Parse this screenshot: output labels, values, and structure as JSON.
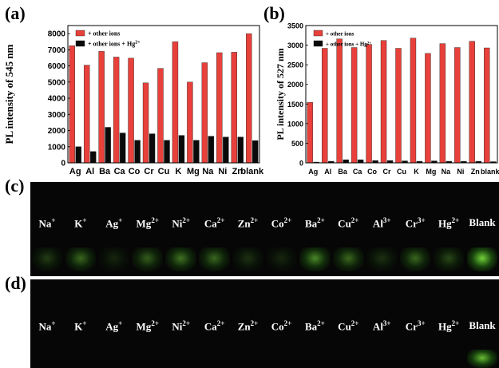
{
  "panels": {
    "a": "(a)",
    "b": "(b)",
    "c": "(c)",
    "d": "(d)"
  },
  "chart_data": [
    {
      "type": "bar",
      "ylabel": "PL intensity of 545 nm",
      "xlabel": "",
      "ylim": [
        0,
        8500
      ],
      "yticks": [
        0,
        1000,
        2000,
        3000,
        4000,
        5000,
        6000,
        7000,
        8000
      ],
      "categories": [
        "Ag",
        "Al",
        "Ba",
        "Ca",
        "Co",
        "Cr",
        "Cu",
        "K",
        "Mg",
        "Na",
        "Ni",
        "Zn",
        "blank"
      ],
      "series": [
        {
          "name": "+ other ions",
          "color": "#e8403a",
          "values": [
            7250,
            6050,
            6900,
            6550,
            6480,
            4950,
            5850,
            7500,
            5000,
            6200,
            6820,
            6850,
            8000
          ]
        },
        {
          "name": "+ other ions + Hg",
          "name_sup": "2+",
          "color": "#0a0a0a",
          "values": [
            1000,
            700,
            2200,
            1850,
            1400,
            1800,
            1400,
            1700,
            1400,
            1650,
            1600,
            1600,
            1380
          ]
        }
      ],
      "legend": "top-left",
      "grid": false
    },
    {
      "type": "bar",
      "ylabel": "PL intensity of 527 nm",
      "xlabel": "",
      "ylim": [
        0,
        3500
      ],
      "yticks": [
        0,
        500,
        1000,
        1500,
        2000,
        2500,
        3000,
        3500
      ],
      "categories": [
        "Ag",
        "Al",
        "Ba",
        "Ca",
        "Co",
        "Cr",
        "Cu",
        "K",
        "Mg",
        "Na",
        "Ni",
        "Zn",
        "blank"
      ],
      "series": [
        {
          "name": "+ other ions",
          "color": "#e8403a",
          "values": [
            1540,
            2920,
            3160,
            2940,
            3020,
            3120,
            2920,
            3180,
            2790,
            3040,
            2940,
            3100,
            2930
          ]
        },
        {
          "name": "+ other ions + Hg",
          "name_sup": "2+",
          "color": "#0a0a0a",
          "values": [
            20,
            40,
            80,
            80,
            60,
            60,
            50,
            40,
            50,
            40,
            40,
            40,
            30
          ]
        }
      ],
      "legend": "top-left",
      "grid": false
    }
  ],
  "ions": [
    {
      "base": "Na",
      "sup": "+"
    },
    {
      "base": "K",
      "sup": "+"
    },
    {
      "base": "Ag",
      "sup": "+"
    },
    {
      "base": "Mg",
      "sup": "2+"
    },
    {
      "base": "Ni",
      "sup": "2+"
    },
    {
      "base": "Ca",
      "sup": "2+"
    },
    {
      "base": "Zn",
      "sup": "2+"
    },
    {
      "base": "Co",
      "sup": "2+"
    },
    {
      "base": "Ba",
      "sup": "2+"
    },
    {
      "base": "Cu",
      "sup": "2+"
    },
    {
      "base": "Al",
      "sup": "3+"
    },
    {
      "base": "Cr",
      "sup": "3+"
    },
    {
      "base": "Hg",
      "sup": "2+"
    },
    {
      "base": "Blank",
      "sup": ""
    }
  ],
  "glow_c": [
    0.25,
    0.45,
    0.15,
    0.4,
    0.5,
    0.45,
    0.2,
    0.15,
    0.6,
    0.45,
    0.2,
    0.45,
    0.3,
    0.95
  ],
  "glow_d": [
    0,
    0,
    0,
    0,
    0,
    0,
    0,
    0,
    0,
    0,
    0,
    0,
    0,
    0.85
  ]
}
